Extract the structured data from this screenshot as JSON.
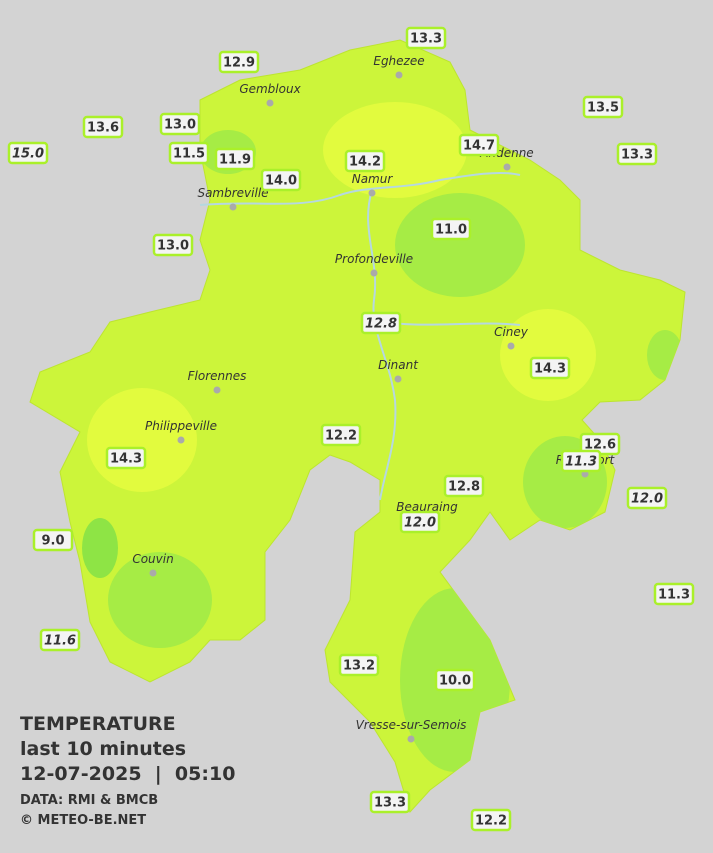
{
  "legend": {
    "title": "TEMPERATURE",
    "period": "last 10 minutes",
    "datetime": "12-07-2025  |  05:10",
    "source": "DATA: RMI & BMCB",
    "credit": "© METEO-BE.NET"
  },
  "cities": [
    "Eghezee",
    "Gembloux",
    "Andenne",
    "Namur",
    "Sambreville",
    "Profondeville",
    "Ciney",
    "Dinant",
    "Florennes",
    "Philippeville",
    "Rochefort",
    "Beauraing",
    "Couvin",
    "Vresse-sur-Semois"
  ],
  "stations": [
    {
      "label": "13.3",
      "italic": false
    },
    {
      "label": "12.9",
      "italic": false
    },
    {
      "label": "13.6",
      "italic": false
    },
    {
      "label": "13.0",
      "italic": false
    },
    {
      "label": "15.0",
      "italic": true
    },
    {
      "label": "11.5",
      "italic": false
    },
    {
      "label": "11.9",
      "italic": false
    },
    {
      "label": "14.0",
      "italic": false
    },
    {
      "label": "14.2",
      "italic": false
    },
    {
      "label": "14.7",
      "italic": false
    },
    {
      "label": "13.5",
      "italic": false
    },
    {
      "label": "13.3",
      "italic": false
    },
    {
      "label": "11.0",
      "italic": false
    },
    {
      "label": "13.0",
      "italic": false
    },
    {
      "label": "12.8",
      "italic": true
    },
    {
      "label": "14.3",
      "italic": false
    },
    {
      "label": "14.3",
      "italic": false
    },
    {
      "label": "12.2",
      "italic": false
    },
    {
      "label": "12.6",
      "italic": false
    },
    {
      "label": "11.3",
      "italic": true
    },
    {
      "label": "12.0",
      "italic": true
    },
    {
      "label": "12.8",
      "italic": false
    },
    {
      "label": "12.0",
      "italic": true
    },
    {
      "label": "9.0",
      "italic": false
    },
    {
      "label": "11.3",
      "italic": false
    },
    {
      "label": "11.6",
      "italic": true
    },
    {
      "label": "13.2",
      "italic": false
    },
    {
      "label": "10.0",
      "italic": false
    },
    {
      "label": "13.3",
      "italic": false
    },
    {
      "label": "12.2",
      "italic": false
    }
  ]
}
